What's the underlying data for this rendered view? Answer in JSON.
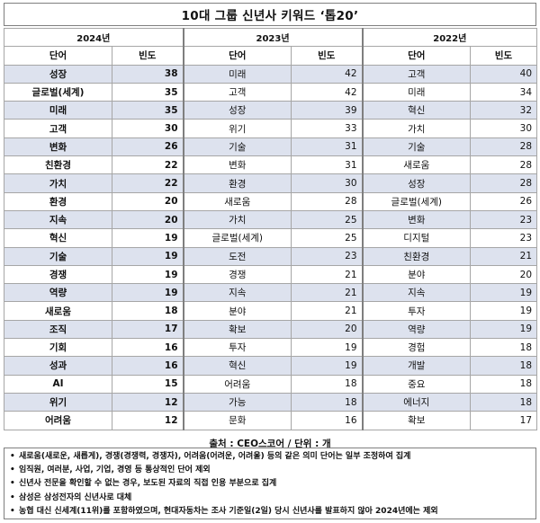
{
  "title": "10대 그룹 신년사 키워드 ‘톱20’",
  "years": [
    "2024년",
    "2023년",
    "2022년"
  ],
  "col_headers": {
    "word": "단어",
    "freq": "빈도"
  },
  "rows": [
    {
      "y2024": {
        "word": "성장",
        "freq": "38"
      },
      "y2023": {
        "word": "미래",
        "freq": "42"
      },
      "y2022": {
        "word": "고객",
        "freq": "40"
      }
    },
    {
      "y2024": {
        "word": "글로벌(세계)",
        "freq": "35"
      },
      "y2023": {
        "word": "고객",
        "freq": "42"
      },
      "y2022": {
        "word": "미래",
        "freq": "34"
      }
    },
    {
      "y2024": {
        "word": "미래",
        "freq": "35"
      },
      "y2023": {
        "word": "성장",
        "freq": "39"
      },
      "y2022": {
        "word": "혁신",
        "freq": "32"
      }
    },
    {
      "y2024": {
        "word": "고객",
        "freq": "30"
      },
      "y2023": {
        "word": "위기",
        "freq": "33"
      },
      "y2022": {
        "word": "가치",
        "freq": "30"
      }
    },
    {
      "y2024": {
        "word": "변화",
        "freq": "26"
      },
      "y2023": {
        "word": "기술",
        "freq": "31"
      },
      "y2022": {
        "word": "기술",
        "freq": "28"
      }
    },
    {
      "y2024": {
        "word": "친환경",
        "freq": "22"
      },
      "y2023": {
        "word": "변화",
        "freq": "31"
      },
      "y2022": {
        "word": "새로움",
        "freq": "28"
      }
    },
    {
      "y2024": {
        "word": "가치",
        "freq": "22"
      },
      "y2023": {
        "word": "환경",
        "freq": "30"
      },
      "y2022": {
        "word": "성장",
        "freq": "28"
      }
    },
    {
      "y2024": {
        "word": "환경",
        "freq": "20"
      },
      "y2023": {
        "word": "새로움",
        "freq": "28"
      },
      "y2022": {
        "word": "글로벌(세계)",
        "freq": "26"
      }
    },
    {
      "y2024": {
        "word": "지속",
        "freq": "20"
      },
      "y2023": {
        "word": "가치",
        "freq": "25"
      },
      "y2022": {
        "word": "변화",
        "freq": "23"
      }
    },
    {
      "y2024": {
        "word": "혁신",
        "freq": "19"
      },
      "y2023": {
        "word": "글로벌(세계)",
        "freq": "25"
      },
      "y2022": {
        "word": "디지털",
        "freq": "23"
      }
    },
    {
      "y2024": {
        "word": "기술",
        "freq": "19"
      },
      "y2023": {
        "word": "도전",
        "freq": "23"
      },
      "y2022": {
        "word": "친환경",
        "freq": "21"
      }
    },
    {
      "y2024": {
        "word": "경쟁",
        "freq": "19"
      },
      "y2023": {
        "word": "경쟁",
        "freq": "21"
      },
      "y2022": {
        "word": "분야",
        "freq": "20"
      }
    },
    {
      "y2024": {
        "word": "역량",
        "freq": "19"
      },
      "y2023": {
        "word": "지속",
        "freq": "21"
      },
      "y2022": {
        "word": "지속",
        "freq": "19"
      }
    },
    {
      "y2024": {
        "word": "새로움",
        "freq": "18"
      },
      "y2023": {
        "word": "분야",
        "freq": "21"
      },
      "y2022": {
        "word": "투자",
        "freq": "19"
      }
    },
    {
      "y2024": {
        "word": "조직",
        "freq": "17"
      },
      "y2023": {
        "word": "확보",
        "freq": "20"
      },
      "y2022": {
        "word": "역량",
        "freq": "19"
      }
    },
    {
      "y2024": {
        "word": "기회",
        "freq": "16"
      },
      "y2023": {
        "word": "투자",
        "freq": "19"
      },
      "y2022": {
        "word": "경험",
        "freq": "18"
      }
    },
    {
      "y2024": {
        "word": "성과",
        "freq": "16"
      },
      "y2023": {
        "word": "혁신",
        "freq": "19"
      },
      "y2022": {
        "word": "개발",
        "freq": "18"
      }
    },
    {
      "y2024": {
        "word": "AI",
        "freq": "15"
      },
      "y2023": {
        "word": "어려움",
        "freq": "18"
      },
      "y2022": {
        "word": "중요",
        "freq": "18"
      }
    },
    {
      "y2024": {
        "word": "위기",
        "freq": "12"
      },
      "y2023": {
        "word": "가능",
        "freq": "18"
      },
      "y2022": {
        "word": "에너지",
        "freq": "18"
      }
    },
    {
      "y2024": {
        "word": "어려움",
        "freq": "12"
      },
      "y2023": {
        "word": "문화",
        "freq": "16"
      },
      "y2022": {
        "word": "확보",
        "freq": "17"
      }
    }
  ],
  "source": "출처 : CEO스코어 / 단위 : 개",
  "bullet_char": "•",
  "notes": [
    "새로움(새로운, 새롭게), 경쟁(경쟁력, 경쟁자), 어려움(어려운, 어려울) 등의 같은 의미 단어는 일부 조정하여 집계",
    "임직원, 여러분, 사업, 기업, 경영 등 통상적인 단어 제외",
    "신년사 전문을 확인할 수 없는 경우, 보도된 자료의 직접 인용 부분으로 집계",
    "삼성은 삼성전자의 신년사로 대체",
    "농협 대신 신세계(11위)를 포함하였으며, 현대자동차는 조사 기준일(2일) 당시 신년사를 발표하지 않아 2024년에는 제외"
  ]
}
